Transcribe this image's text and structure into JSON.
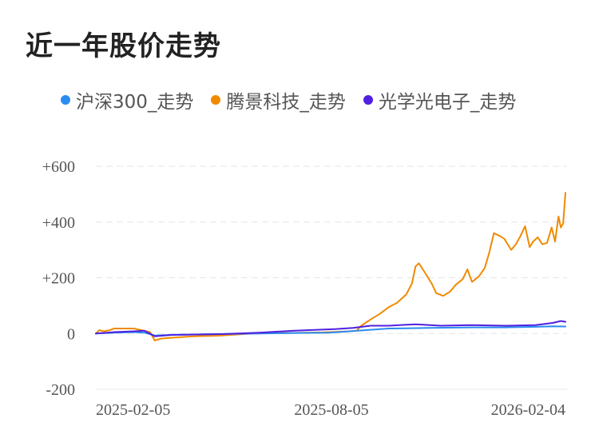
{
  "title": "近一年股价走势",
  "chart_data": {
    "type": "line",
    "ylim": [
      -200,
      600
    ],
    "yticks": [
      600,
      400,
      200,
      0,
      -200
    ],
    "ytick_labels": [
      "+600",
      "+400",
      "+200",
      "0",
      "-200"
    ],
    "xlim": [
      "2024-12-25",
      "2026-02-05"
    ],
    "xtick_labels": [
      "2025-02-05",
      "2025-08-05",
      "2026-02-04"
    ],
    "grid": true,
    "legend_position": "top",
    "series": [
      {
        "name": "沪深300_走势",
        "color": "#2b8cf0",
        "points": [
          [
            "2024-12-25",
            0
          ],
          [
            "2025-01-10",
            3
          ],
          [
            "2025-01-27",
            5
          ],
          [
            "2025-02-05",
            3
          ],
          [
            "2025-02-14",
            -7
          ],
          [
            "2025-02-27",
            -5
          ],
          [
            "2025-03-15",
            -4
          ],
          [
            "2025-04-15",
            -2
          ],
          [
            "2025-05-15",
            0
          ],
          [
            "2025-06-15",
            2
          ],
          [
            "2025-07-15",
            3
          ],
          [
            "2025-07-31",
            7
          ],
          [
            "2025-08-15",
            12
          ],
          [
            "2025-09-05",
            18
          ],
          [
            "2025-10-10",
            20
          ],
          [
            "2025-11-15",
            22
          ],
          [
            "2025-12-15",
            22
          ],
          [
            "2026-01-10",
            24
          ],
          [
            "2026-01-25",
            26
          ],
          [
            "2026-02-05",
            25
          ]
        ]
      },
      {
        "name": "腾景科技_走势",
        "color": "#f08a00",
        "points": [
          [
            "2024-12-25",
            0
          ],
          [
            "2024-12-28",
            12
          ],
          [
            "2025-01-01",
            8
          ],
          [
            "2025-01-06",
            12
          ],
          [
            "2025-01-10",
            18
          ],
          [
            "2025-01-27",
            18
          ],
          [
            "2025-02-05",
            10
          ],
          [
            "2025-02-10",
            5
          ],
          [
            "2025-02-14",
            -25
          ],
          [
            "2025-02-20",
            -18
          ],
          [
            "2025-03-05",
            -14
          ],
          [
            "2025-03-20",
            -10
          ],
          [
            "2025-04-10",
            -8
          ],
          [
            "2025-05-10",
            0
          ],
          [
            "2025-06-10",
            2
          ],
          [
            "2025-07-10",
            4
          ],
          [
            "2025-08-01",
            8
          ],
          [
            "2025-08-08",
            10
          ],
          [
            "2025-08-12",
            28
          ],
          [
            "2025-08-20",
            50
          ],
          [
            "2025-08-28",
            70
          ],
          [
            "2025-09-05",
            95
          ],
          [
            "2025-09-12",
            110
          ],
          [
            "2025-09-20",
            140
          ],
          [
            "2025-09-25",
            180
          ],
          [
            "2025-09-28",
            240
          ],
          [
            "2025-10-01",
            252
          ],
          [
            "2025-10-06",
            220
          ],
          [
            "2025-10-12",
            180
          ],
          [
            "2025-10-16",
            145
          ],
          [
            "2025-10-22",
            135
          ],
          [
            "2025-10-28",
            150
          ],
          [
            "2025-11-02",
            175
          ],
          [
            "2025-11-08",
            195
          ],
          [
            "2025-11-12",
            230
          ],
          [
            "2025-11-16",
            185
          ],
          [
            "2025-11-22",
            205
          ],
          [
            "2025-11-27",
            235
          ],
          [
            "2025-12-01",
            290
          ],
          [
            "2025-12-05",
            360
          ],
          [
            "2025-12-10",
            350
          ],
          [
            "2025-12-14",
            340
          ],
          [
            "2025-12-20",
            300
          ],
          [
            "2025-12-24",
            320
          ],
          [
            "2025-12-28",
            350
          ],
          [
            "2026-01-01",
            385
          ],
          [
            "2026-01-05",
            310
          ],
          [
            "2026-01-08",
            330
          ],
          [
            "2026-01-12",
            345
          ],
          [
            "2026-01-16",
            320
          ],
          [
            "2026-01-20",
            325
          ],
          [
            "2026-01-24",
            380
          ],
          [
            "2026-01-27",
            330
          ],
          [
            "2026-01-30",
            420
          ],
          [
            "2026-02-01",
            380
          ],
          [
            "2026-02-03",
            395
          ],
          [
            "2026-02-05",
            505
          ]
        ]
      },
      {
        "name": "光学光电子_走势",
        "color": "#5020e0",
        "points": [
          [
            "2024-12-25",
            0
          ],
          [
            "2025-01-10",
            5
          ],
          [
            "2025-01-27",
            8
          ],
          [
            "2025-02-05",
            10
          ],
          [
            "2025-02-14",
            -10
          ],
          [
            "2025-03-01",
            -5
          ],
          [
            "2025-04-15",
            -2
          ],
          [
            "2025-05-15",
            3
          ],
          [
            "2025-06-15",
            10
          ],
          [
            "2025-07-20",
            16
          ],
          [
            "2025-08-05",
            20
          ],
          [
            "2025-08-20",
            28
          ],
          [
            "2025-09-05",
            28
          ],
          [
            "2025-09-28",
            33
          ],
          [
            "2025-10-20",
            28
          ],
          [
            "2025-11-15",
            30
          ],
          [
            "2025-12-15",
            28
          ],
          [
            "2026-01-10",
            30
          ],
          [
            "2026-01-25",
            38
          ],
          [
            "2026-02-01",
            45
          ],
          [
            "2026-02-05",
            42
          ]
        ]
      }
    ]
  }
}
